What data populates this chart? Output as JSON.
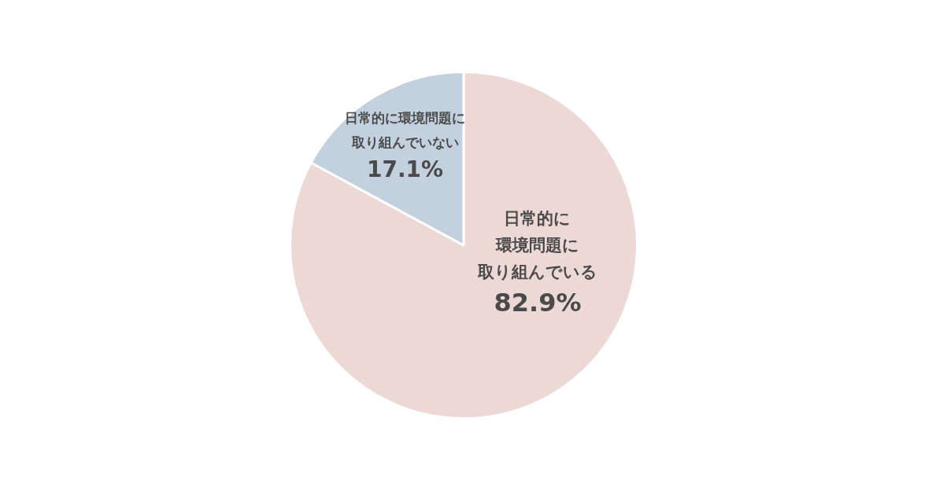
{
  "chart_data": {
    "type": "pie",
    "categories": [
      "日常的に環境問題に取り組んでいる",
      "日常的に環境問題に取り組んでいない"
    ],
    "values": [
      82.9,
      17.1
    ],
    "colors": [
      "#ecd8d4",
      "#c3d1df"
    ],
    "value_labels": [
      "82.9%",
      "17.1%"
    ]
  }
}
